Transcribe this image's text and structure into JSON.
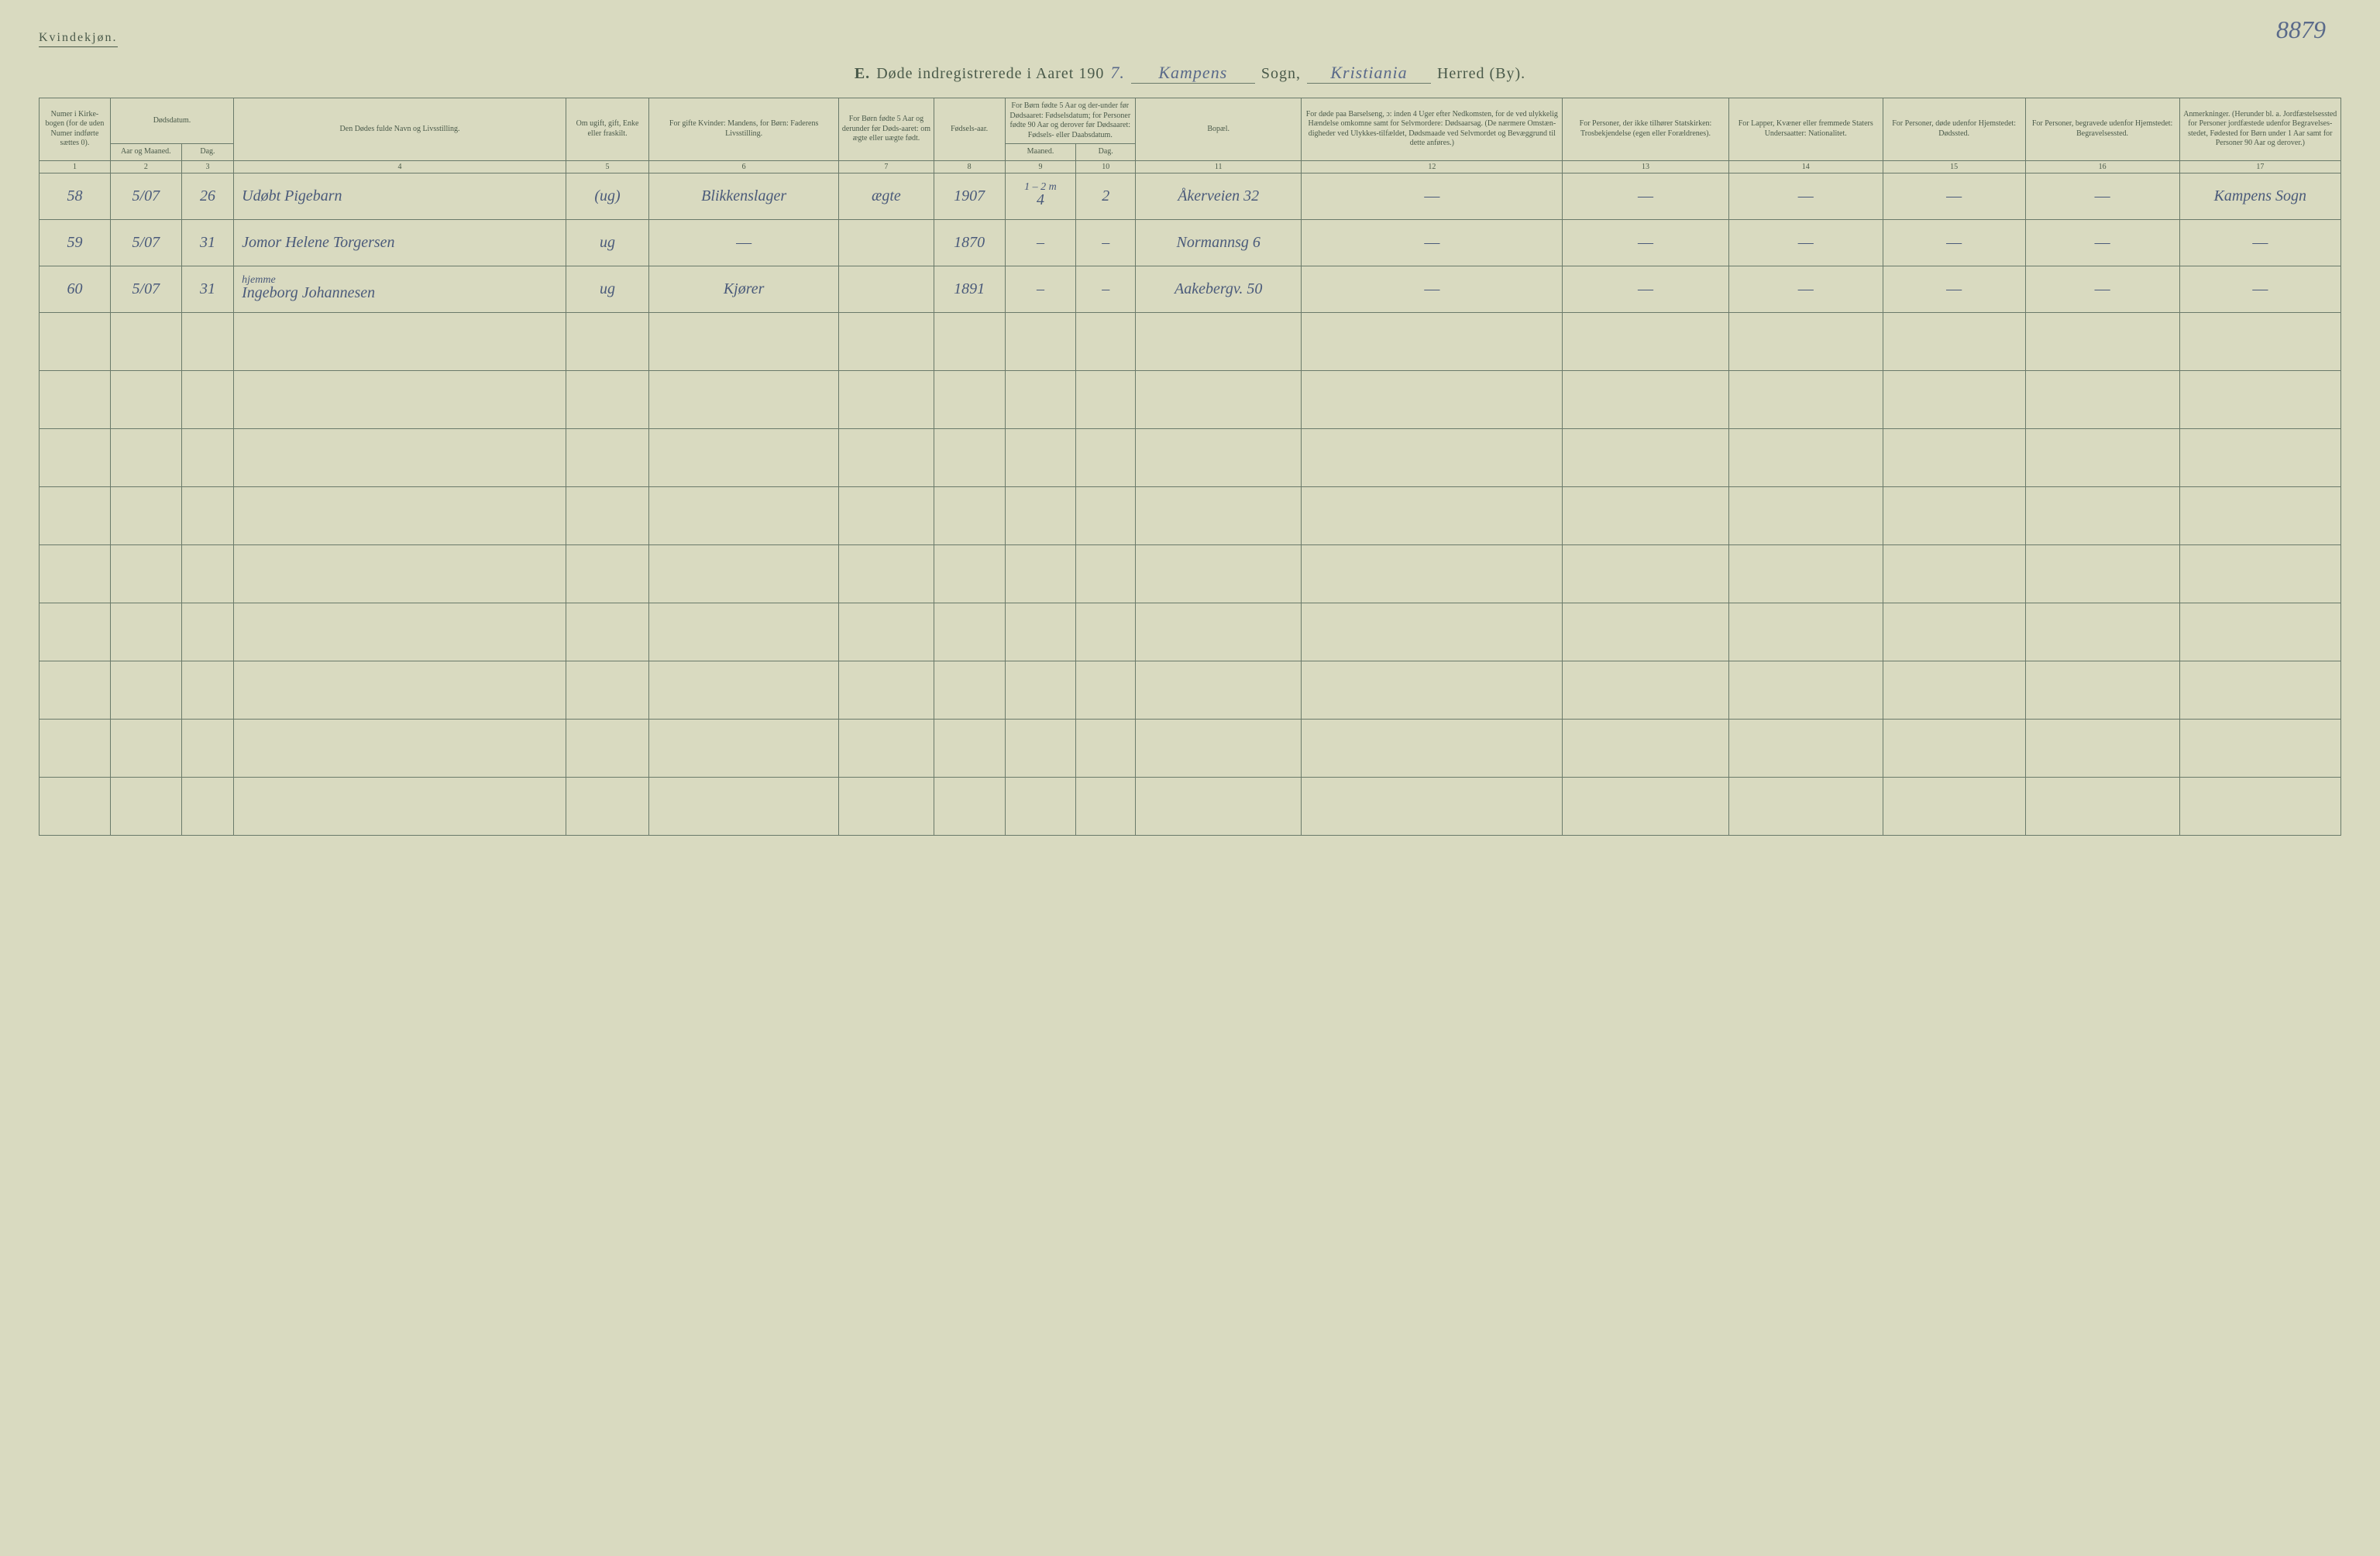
{
  "page_number_hand": "8879",
  "gender_label": "Kvindekjøn.",
  "title": {
    "prefix_bold": "E.",
    "main": "Døde indregistrerede i Aaret 190",
    "year_suffix_hand": "7.",
    "sogn_fill": "Kampens",
    "sogn_label": "Sogn,",
    "herred_fill": "Kristiania",
    "herred_label": "Herred (By)."
  },
  "headers": {
    "col1": "Numer i Kirke-bogen (for de uden Numer indførte sættes 0).",
    "col2_top": "Dødsdatum.",
    "col2a": "Aar og Maaned.",
    "col2b": "Dag.",
    "col4": "Den Dødes fulde Navn og Livsstilling.",
    "col5": "Om ugift, gift, Enke eller fraskilt.",
    "col6": "For gifte Kvinder: Mandens, for Børn: Faderens Livsstilling.",
    "col7": "For Børn fødte 5 Aar og derunder før Døds-aaret: om ægte eller uægte født.",
    "col8": "Fødsels-aar.",
    "col9_top": "For Børn fødte 5 Aar og der-under før Dødsaaret: Fødselsdatum; for Personer fødte 90 Aar og derover før Dødsaaret: Fødsels- eller Daabsdatum.",
    "col9a": "Maaned.",
    "col9b": "Dag.",
    "col11": "Bopæl.",
    "col12": "For døde paa Barselseng, ɔ: inden 4 Uger efter Nedkomsten, for de ved ulykkelig Hændelse omkomne samt for Selvmordere: Dødsaarsag. (De nærmere Omstæn-digheder ved Ulykkes-tilfældet, Dødsmaade ved Selvmordet og Bevæggrund til dette anføres.)",
    "col13": "For Personer, der ikke tilhører Statskirken: Trosbekjendelse (egen eller Forældrenes).",
    "col14": "For Lapper, Kvæner eller fremmede Staters Undersaatter: Nationalitet.",
    "col15": "For Personer, døde udenfor Hjemstedet: Dødssted.",
    "col16": "For Personer, begravede udenfor Hjemstedet: Begravelsessted.",
    "col17": "Anmerkninger. (Herunder bl. a. Jordfæstelsessted for Personer jordfæstede udenfor Begravelses-stedet, Fødested for Børn under 1 Aar samt for Personer 90 Aar og derover.)"
  },
  "colnums": [
    "1",
    "2",
    "3",
    "4",
    "5",
    "6",
    "7",
    "8",
    "9",
    "10",
    "11",
    "12",
    "13",
    "14",
    "15",
    "16",
    "17"
  ],
  "rows": [
    {
      "num": "58",
      "aarmnd": "5/07",
      "dag": "26",
      "name": "Udøbt Pigebarn",
      "name_super": "",
      "status": "(ug)",
      "faderstilling": "Blikkenslager",
      "aegte": "ægte",
      "faar": "1907",
      "fm_note": "1 – 2 m",
      "fmnd": "4",
      "fdag": "2",
      "bopael": "Åkerveien 32",
      "c12": "—",
      "c13": "—",
      "c14": "—",
      "c15": "—",
      "c16": "—",
      "c17": "Kampens Sogn"
    },
    {
      "num": "59",
      "aarmnd": "5/07",
      "dag": "31",
      "name": "Jomor Helene Torgersen",
      "name_super": "",
      "status": "ug",
      "faderstilling": "—",
      "aegte": "",
      "faar": "1870",
      "fm_note": "",
      "fmnd": "–",
      "fdag": "–",
      "bopael": "Normannsg 6",
      "c12": "—",
      "c13": "—",
      "c14": "—",
      "c15": "—",
      "c16": "—",
      "c17": "—"
    },
    {
      "num": "60",
      "aarmnd": "5/07",
      "dag": "31",
      "name": "Ingeborg Johannesen",
      "name_super": "hjemme",
      "status": "ug",
      "faderstilling": "Kjører",
      "aegte": "",
      "faar": "1891",
      "fm_note": "",
      "fmnd": "–",
      "fdag": "–",
      "bopael": "Aakebergv. 50",
      "c12": "—",
      "c13": "—",
      "c14": "—",
      "c15": "—",
      "c16": "—",
      "c17": "—"
    }
  ],
  "blank_rows": 9,
  "colors": {
    "paper": "#d9dac0",
    "ink_print": "#4a5a4a",
    "ink_hand": "#5a6a8a",
    "rule": "#6a7a6a"
  }
}
